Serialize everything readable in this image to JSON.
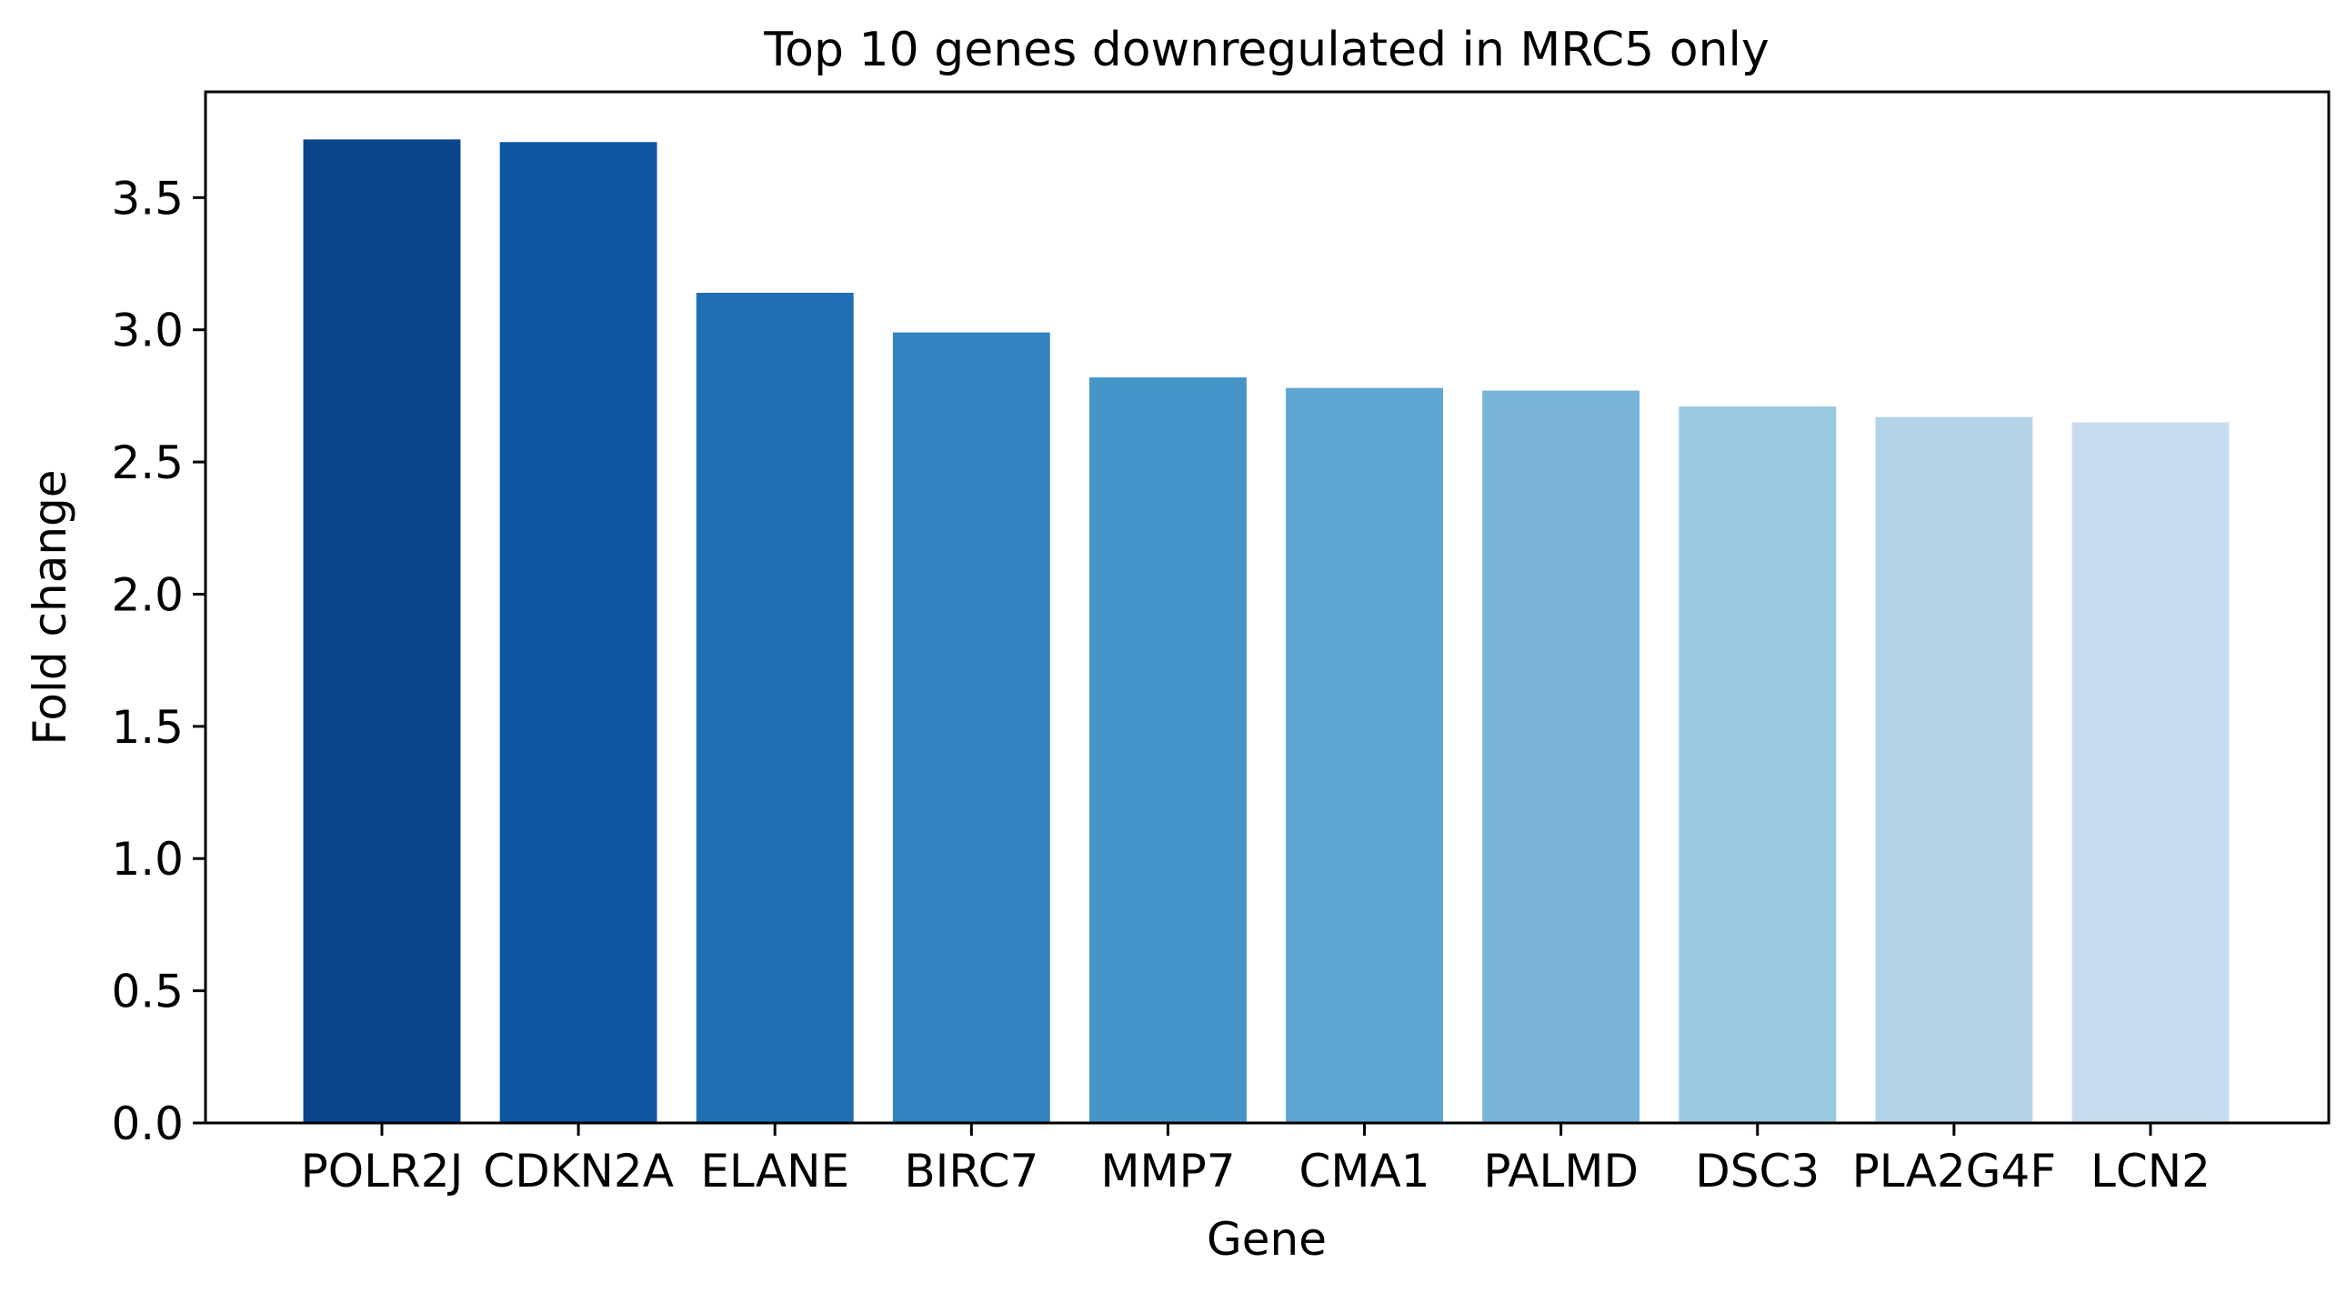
{
  "chart_data": {
    "type": "bar",
    "title": "Top 10 genes downregulated in MRC5 only",
    "xlabel": "Gene",
    "ylabel": "Fold change",
    "categories": [
      "POLR2J",
      "CDKN2A",
      "ELANE",
      "BIRC7",
      "MMP7",
      "CMA1",
      "PALMD",
      "DSC3",
      "PLA2G4F",
      "LCN2"
    ],
    "values": [
      3.72,
      3.71,
      3.14,
      2.99,
      2.82,
      2.78,
      2.77,
      2.71,
      2.67,
      2.65
    ],
    "colors": [
      "#08458a",
      "#0f57a3",
      "#206fb4",
      "#3383c0",
      "#4695c8",
      "#5ea6d1",
      "#79b5d9",
      "#9ac8e0",
      "#b3d3e8",
      "#c8dcf0"
    ],
    "yticks": [
      "0.0",
      "0.5",
      "1.0",
      "1.5",
      "2.0",
      "2.5",
      "3.0",
      "3.5"
    ],
    "ylim": [
      0,
      3.9
    ],
    "grid": false,
    "legend": "none"
  }
}
